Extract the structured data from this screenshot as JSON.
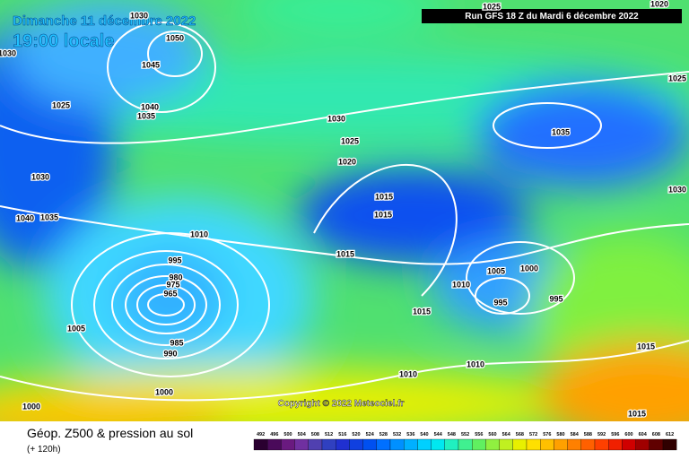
{
  "header": {
    "date": "Dimanche 11 décembre 2022",
    "time": "19:00 locale",
    "run": "Run GFS 18 Z du Mardi 6 décembre 2022"
  },
  "copyright": "Copyright © 2022 Meteociel.fr",
  "legend": {
    "title": "Géop. Z500 & pression au sol",
    "lead": "(+ 120h)",
    "values": [
      492,
      496,
      500,
      504,
      508,
      512,
      516,
      520,
      524,
      528,
      532,
      536,
      540,
      544,
      548,
      552,
      556,
      560,
      564,
      568,
      572,
      576,
      580,
      584,
      588,
      592,
      596,
      600,
      604,
      608,
      612
    ],
    "colors": [
      "#2a0030",
      "#4a0a5a",
      "#6a1a80",
      "#7030a0",
      "#5040b0",
      "#3040c0",
      "#2030d0",
      "#1040e0",
      "#0050f0",
      "#0070ff",
      "#0090ff",
      "#00b0ff",
      "#00d0ff",
      "#00e8f0",
      "#20f0c0",
      "#40f090",
      "#60f060",
      "#90f040",
      "#c0f020",
      "#e8f000",
      "#ffe000",
      "#ffc000",
      "#ffa000",
      "#ff8000",
      "#ff6000",
      "#ff4000",
      "#f02000",
      "#d00000",
      "#a00000",
      "#600000",
      "#300000"
    ]
  },
  "isobars": [
    "1050",
    "1045",
    "1040",
    "1035",
    "1030",
    "1025",
    "1030",
    "1040",
    "1035",
    "1030",
    "1025",
    "1020",
    "1015",
    "1015",
    "1010",
    "1015",
    "995",
    "980",
    "975",
    "965",
    "1005",
    "985",
    "990",
    "1000",
    "1000",
    "1035",
    "1025",
    "1030",
    "1005",
    "1000",
    "1010",
    "995",
    "995",
    "1015",
    "1010",
    "1010",
    "1015",
    "1015",
    "1020",
    "1025",
    "1030"
  ]
}
